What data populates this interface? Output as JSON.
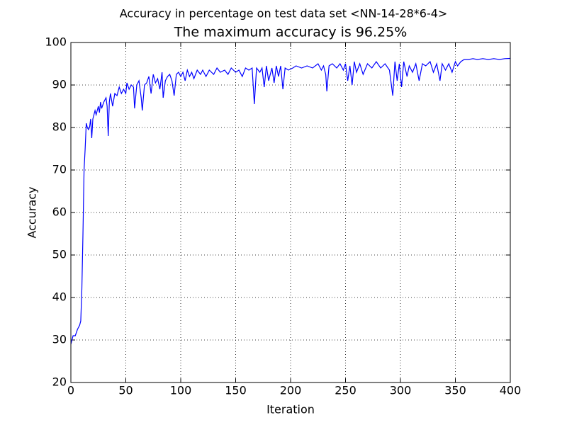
{
  "chart_data": {
    "type": "line",
    "suptitle": "Accuracy in percentage on test data set <NN-14-28*6-4>",
    "title": "The maximum accuracy is 96.25%",
    "xlabel": "Iteration",
    "ylabel": "Accuracy",
    "x": [
      0,
      2,
      4,
      6,
      8,
      9,
      10,
      11,
      12,
      13,
      14,
      15,
      16,
      17,
      18,
      19,
      20,
      22,
      23,
      25,
      26,
      27,
      28,
      30,
      32,
      33,
      34,
      35,
      36,
      38,
      40,
      42,
      44,
      46,
      48,
      50,
      51,
      53,
      55,
      57,
      58,
      60,
      62,
      64,
      65,
      67,
      69,
      71,
      73,
      75,
      77,
      79,
      81,
      83,
      84,
      86,
      88,
      90,
      92,
      94,
      96,
      98,
      100,
      102,
      104,
      106,
      108,
      110,
      112,
      115,
      118,
      120,
      123,
      126,
      130,
      133,
      136,
      140,
      143,
      146,
      150,
      153,
      156,
      159,
      162,
      165,
      167,
      169,
      172,
      174,
      176,
      178,
      180,
      183,
      185,
      187,
      189,
      191,
      193,
      195,
      198,
      202,
      205,
      210,
      215,
      220,
      225,
      228,
      230,
      232,
      233,
      235,
      238,
      242,
      245,
      248,
      250,
      252,
      254,
      256,
      258,
      260,
      263,
      266,
      270,
      274,
      278,
      282,
      286,
      290,
      293,
      295,
      297,
      299,
      301,
      303,
      306,
      308,
      311,
      314,
      317,
      320,
      323,
      327,
      330,
      333,
      336,
      338,
      341,
      344,
      347,
      350,
      352,
      355,
      358,
      362,
      366,
      370,
      375,
      380,
      385,
      390,
      395,
      400
    ],
    "series": [
      {
        "name": "accuracy",
        "color": "#0000ff",
        "values": [
          29,
          31,
          31,
          32.5,
          33.5,
          34.5,
          42,
          55,
          70,
          75,
          81,
          80,
          79.5,
          80,
          82,
          77.5,
          82,
          84,
          83,
          85,
          83.5,
          86,
          84.5,
          86,
          87,
          85,
          78,
          86,
          88,
          85,
          88,
          87.5,
          89.5,
          88,
          89,
          88,
          90.5,
          89,
          90,
          89.5,
          84.5,
          90,
          91,
          87,
          84,
          90,
          90.5,
          92,
          88,
          92.5,
          90.5,
          91.5,
          89,
          93,
          87,
          91,
          92,
          92.5,
          91,
          87.5,
          92.5,
          93,
          92,
          93,
          91,
          93.5,
          92,
          93,
          91.5,
          93.5,
          92.5,
          93.5,
          92,
          93.5,
          92.5,
          94,
          93,
          93.5,
          92.5,
          94,
          93,
          93.5,
          92,
          94,
          93.5,
          94,
          85.5,
          94,
          93,
          94,
          89.5,
          94.5,
          91,
          94,
          90.5,
          94.5,
          92,
          94.5,
          89,
          94,
          93.5,
          94,
          94.5,
          94,
          94.5,
          94,
          95,
          93.5,
          94.5,
          92.5,
          88.5,
          94.5,
          95,
          94,
          95,
          93.5,
          95,
          91,
          94.5,
          90,
          95.5,
          93,
          95,
          92.5,
          95,
          94,
          95.5,
          94,
          95,
          93.5,
          87.5,
          95.5,
          91,
          95,
          89.5,
          95.5,
          92,
          94.5,
          93,
          95,
          91,
          95,
          94.5,
          95.5,
          93,
          95,
          91,
          95,
          93.5,
          95,
          93,
          95.5,
          94.5,
          95.5,
          96,
          96,
          96.2,
          96,
          96.2,
          96,
          96.2,
          96,
          96.2,
          96.25
        ]
      }
    ],
    "xlim": [
      0,
      400
    ],
    "ylim": [
      20,
      100
    ],
    "xticks": [
      0,
      50,
      100,
      150,
      200,
      250,
      300,
      350,
      400
    ],
    "yticks": [
      20,
      30,
      40,
      50,
      60,
      70,
      80,
      90,
      100
    ],
    "grid": true
  }
}
